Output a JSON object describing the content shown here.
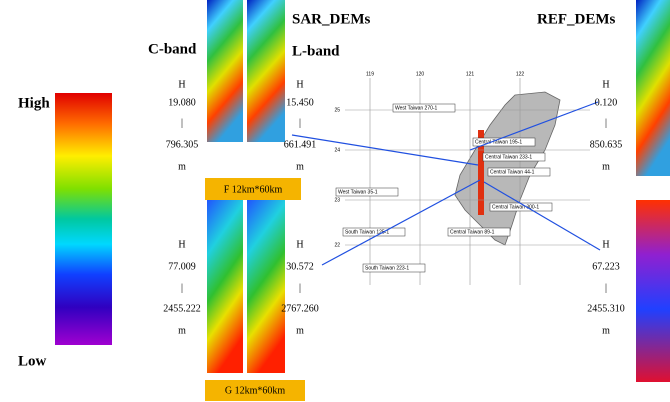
{
  "legend": {
    "high": "High",
    "low": "Low"
  },
  "sar_dems": {
    "title": "SAR_DEMs",
    "c_band": {
      "label": "C-band",
      "top": [
        "H",
        "19.080",
        "|",
        "796.305",
        "m"
      ],
      "bottom": [
        "H",
        "77.009",
        "|",
        "2455.222",
        "m"
      ]
    },
    "l_band": {
      "label": "L-band",
      "top": [
        "H",
        "15.450",
        "|",
        "661.491",
        "m"
      ],
      "bottom": [
        "H",
        "30.572",
        "|",
        "2767.260",
        "m"
      ]
    }
  },
  "boxes": [
    "F  12km*60km",
    "G  12km*60km"
  ],
  "ref_dems": {
    "title": "REF_DEMs",
    "top": [
      "H",
      "0.120",
      "|",
      "850.635",
      "m"
    ],
    "bottom": [
      "H",
      "67.223",
      "|",
      "2455.310",
      "m"
    ]
  },
  "map": {
    "lon": [
      "119",
      "120",
      "121",
      "122"
    ],
    "lat": [
      "25",
      "24",
      "23",
      "22"
    ],
    "labels": [
      "West Taiwan 270-1",
      "Central Taiwan 195-1",
      "Central Taiwan 233-1",
      "Central Taiwan 44-1",
      "West Taiwan 35-1",
      "Central Taiwan 300-1",
      "South Taiwan 125-1",
      "Central Taiwan 89-1",
      "South Taiwan 223-1"
    ]
  }
}
